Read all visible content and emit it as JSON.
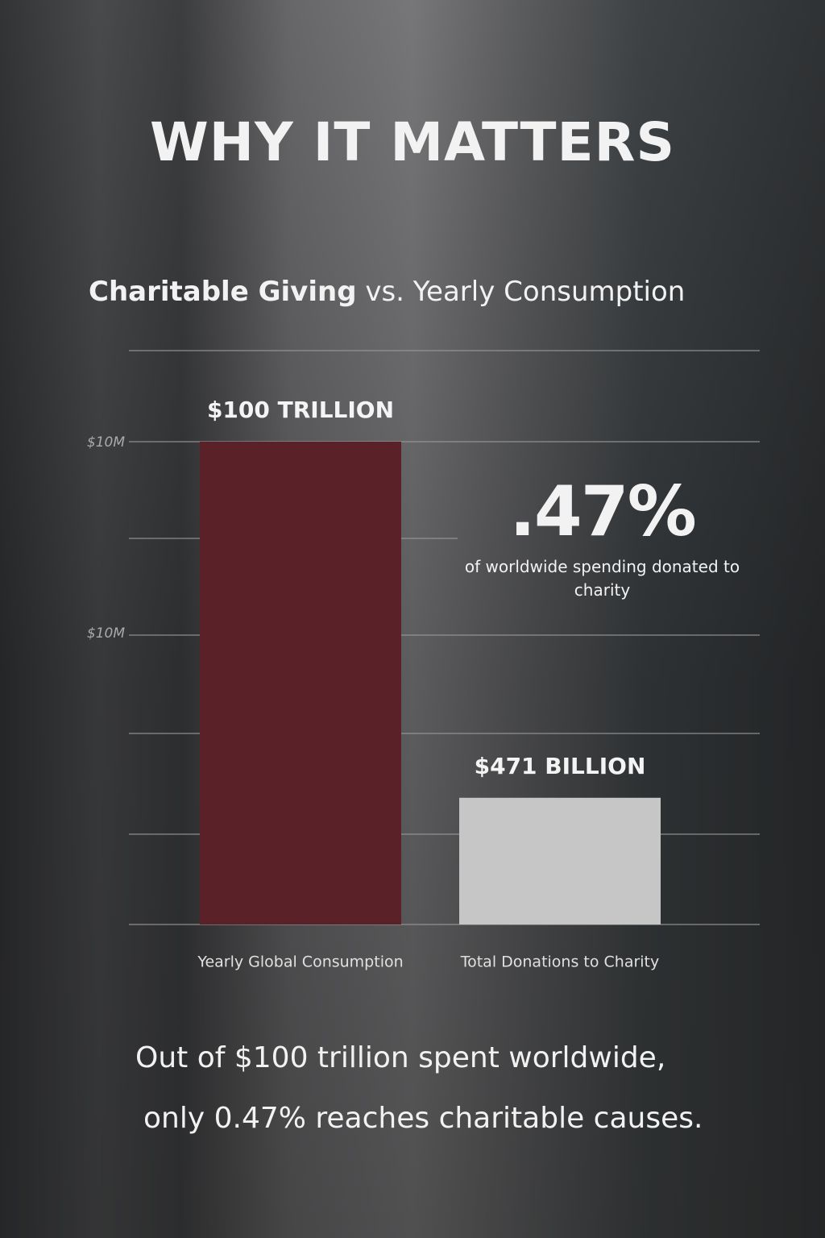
{
  "header": {
    "title": "WHY IT MATTERS"
  },
  "chart_data": {
    "type": "bar",
    "title": "Charitable Giving",
    "title_suffix": "vs. Yearly Consumption",
    "categories": [
      "Yearly Global Consumption",
      "Total Donations to Charity"
    ],
    "values": [
      100000000000000,
      471000000000
    ],
    "value_labels": [
      "$100 TRILLION",
      "$471 BILLION"
    ],
    "colors": [
      "#5a2228",
      "#c6c6c6"
    ],
    "log_scale": true,
    "ylim": [
      70000000000,
      100000000000000
    ],
    "axis_labels": [
      "$10M",
      "$10M"
    ],
    "annotation": {
      "value": ".47%",
      "text": "of worldwide spending donated to charity"
    }
  },
  "footer": {
    "lines": [
      "Out of $100 trillion spent worldwide,",
      "only 0.47% reaches charitable causes."
    ]
  }
}
